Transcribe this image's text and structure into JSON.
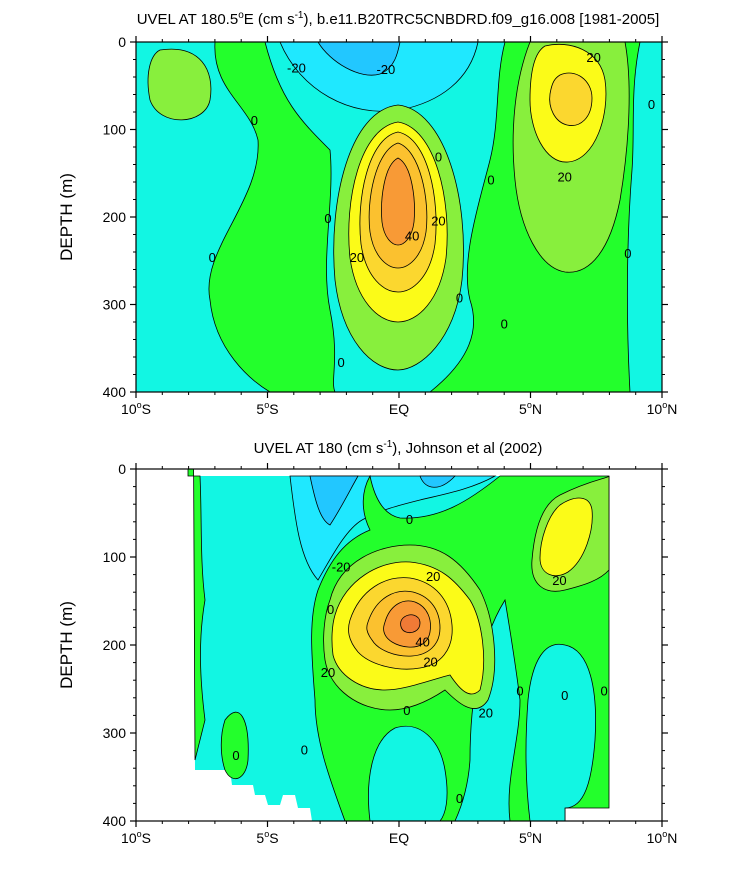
{
  "chart_data": [
    {
      "type": "contour",
      "title": "UVEL AT 180.5°E (cm s-1), b.e11.B20TRC5CNBDRD.f09_g16.008 [1981-2005]",
      "title_parts": {
        "pre": "UVEL AT 180.5",
        "deg": "o",
        "mid": "E (cm s",
        "sup": "-1",
        "post": "), b.e11.B20TRC5CNBDRD.f09_g16.008 [1981-2005]"
      },
      "ylabel": "DEPTH (m)",
      "xlabel": "",
      "xlim": [
        -10,
        10
      ],
      "ylim": [
        0,
        400
      ],
      "y_inverted": true,
      "x_ticks": [
        -10,
        -5,
        0,
        5,
        10
      ],
      "x_tick_labels": [
        {
          "num": "10",
          "deg": "o",
          "hem": "S"
        },
        {
          "num": "5",
          "deg": "o",
          "hem": "S"
        },
        {
          "num": "EQ",
          "deg": "",
          "hem": ""
        },
        {
          "num": "5",
          "deg": "o",
          "hem": "N"
        },
        {
          "num": "10",
          "deg": "o",
          "hem": "N"
        }
      ],
      "y_ticks": [
        0,
        100,
        200,
        300,
        400
      ],
      "y_tick_labels": [
        "0",
        "100",
        "200",
        "300",
        "400"
      ],
      "contour_interval": 10,
      "contour_labels": [
        {
          "text": "-20",
          "lat": -3.9,
          "depth": 30
        },
        {
          "text": "-20",
          "lat": -0.5,
          "depth": 32
        },
        {
          "text": "20",
          "lat": 7.4,
          "depth": 18
        },
        {
          "text": "0",
          "lat": -5.5,
          "depth": 90
        },
        {
          "text": "0",
          "lat": 9.6,
          "depth": 72
        },
        {
          "text": "0",
          "lat": 1.5,
          "depth": 132
        },
        {
          "text": "0",
          "lat": 3.5,
          "depth": 158
        },
        {
          "text": "20",
          "lat": 6.3,
          "depth": 155
        },
        {
          "text": "0",
          "lat": -2.7,
          "depth": 202
        },
        {
          "text": "20",
          "lat": 1.5,
          "depth": 205
        },
        {
          "text": "40",
          "lat": 0.5,
          "depth": 222
        },
        {
          "text": "20",
          "lat": -1.6,
          "depth": 247
        },
        {
          "text": "0",
          "lat": -7.1,
          "depth": 247
        },
        {
          "text": "0",
          "lat": 8.7,
          "depth": 242
        },
        {
          "text": "0",
          "lat": 2.3,
          "depth": 293
        },
        {
          "text": "0",
          "lat": 4.0,
          "depth": 323
        },
        {
          "text": "0",
          "lat": -2.2,
          "depth": 367
        }
      ]
    },
    {
      "type": "contour",
      "title": "UVEL AT 180 (cm s-1), Johnson et al (2002)",
      "title_parts": {
        "pre": "UVEL AT 180",
        "deg": "",
        "mid": " (cm s",
        "sup": "-1",
        "post": "), Johnson et al (2002)"
      },
      "ylabel": "DEPTH (m)",
      "xlabel": "",
      "xlim": [
        -10,
        10
      ],
      "ylim": [
        0,
        400
      ],
      "y_inverted": true,
      "x_ticks": [
        -10,
        -5,
        0,
        5,
        10
      ],
      "x_tick_labels": [
        {
          "num": "10",
          "deg": "o",
          "hem": "S"
        },
        {
          "num": "5",
          "deg": "o",
          "hem": "S"
        },
        {
          "num": "EQ",
          "deg": "",
          "hem": ""
        },
        {
          "num": "5",
          "deg": "o",
          "hem": "N"
        },
        {
          "num": "10",
          "deg": "o",
          "hem": "N"
        }
      ],
      "y_ticks": [
        0,
        100,
        200,
        300,
        400
      ],
      "y_tick_labels": [
        "0",
        "100",
        "200",
        "300",
        "400"
      ],
      "data_extent_lat": [
        -8,
        8
      ],
      "contour_interval": 10,
      "contour_labels": [
        {
          "text": "-20",
          "lat": -2.2,
          "depth": 112
        },
        {
          "text": "0",
          "lat": 0.4,
          "depth": 58
        },
        {
          "text": "20",
          "lat": 1.3,
          "depth": 123
        },
        {
          "text": "20",
          "lat": 6.1,
          "depth": 127
        },
        {
          "text": "0",
          "lat": -2.6,
          "depth": 160
        },
        {
          "text": "40",
          "lat": 0.9,
          "depth": 197
        },
        {
          "text": "20",
          "lat": 1.2,
          "depth": 220
        },
        {
          "text": "20",
          "lat": -2.7,
          "depth": 232
        },
        {
          "text": "0",
          "lat": 4.6,
          "depth": 253
        },
        {
          "text": "0",
          "lat": 6.3,
          "depth": 258
        },
        {
          "text": "0",
          "lat": 7.8,
          "depth": 253
        },
        {
          "text": "20",
          "lat": 3.3,
          "depth": 278
        },
        {
          "text": "0",
          "lat": 0.3,
          "depth": 275
        },
        {
          "text": "0",
          "lat": -3.6,
          "depth": 320
        },
        {
          "text": "0",
          "lat": -6.2,
          "depth": 326
        },
        {
          "text": "0",
          "lat": 2.3,
          "depth": 375
        }
      ]
    }
  ]
}
